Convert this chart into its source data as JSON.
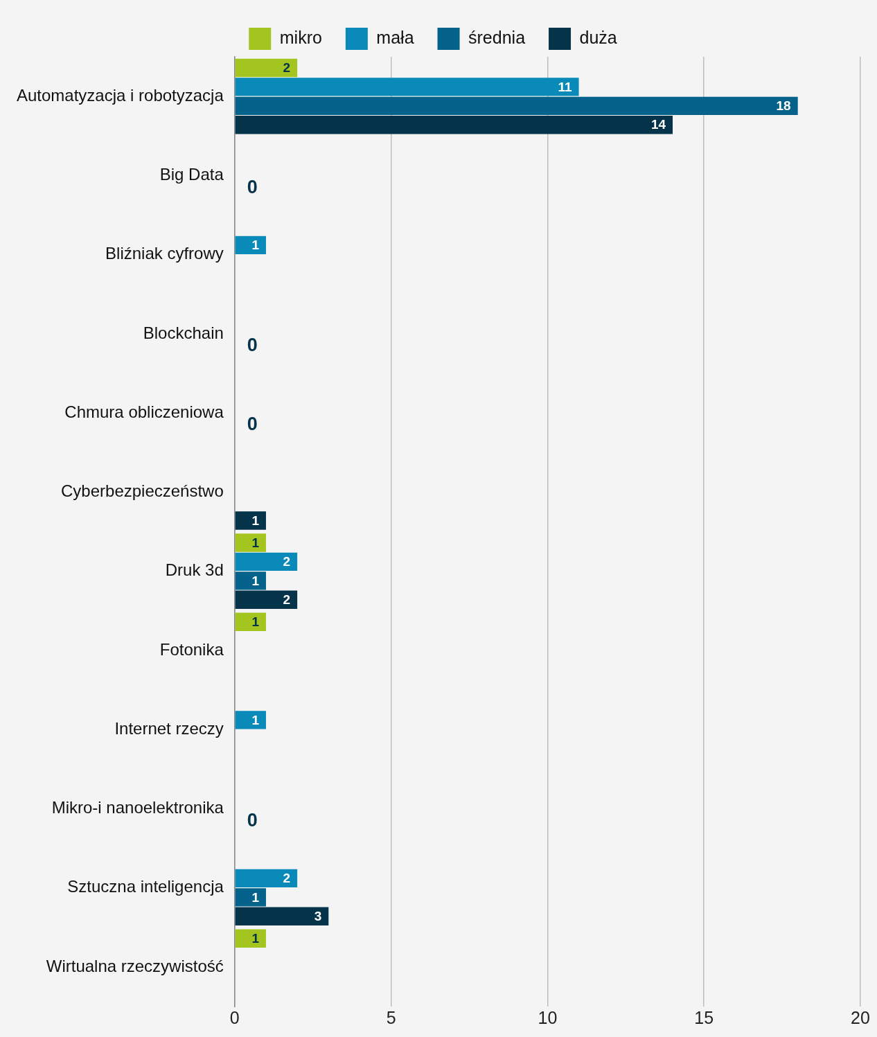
{
  "chart_data": {
    "type": "bar",
    "orientation": "horizontal",
    "categories": [
      "Automatyzacja i robotyzacja",
      "Big Data",
      "Bliźniak cyfrowy",
      "Blockchain",
      "Chmura obliczeniowa",
      "Cyberbezpieczeństwo",
      "Druk 3d",
      "Fotonika",
      "Internet rzeczy",
      "Mikro-i nanoelektronika",
      "Sztuczna inteligencja",
      "Wirtualna rzeczywistość"
    ],
    "series": [
      {
        "name": "mikro",
        "color": "#a4c520",
        "values": [
          2,
          0,
          0,
          0,
          0,
          0,
          1,
          1,
          0,
          0,
          0,
          1
        ],
        "value_labels": [
          "2",
          null,
          null,
          null,
          null,
          null,
          "1",
          "1",
          null,
          null,
          null,
          "1"
        ]
      },
      {
        "name": "mała",
        "color": "#0a8ab8",
        "values": [
          11,
          0,
          1,
          0,
          0,
          0,
          2,
          0,
          1,
          0,
          2,
          0
        ],
        "value_labels": [
          "11",
          null,
          "1",
          null,
          null,
          null,
          "2",
          null,
          "1",
          null,
          "2",
          null
        ]
      },
      {
        "name": "średnia",
        "color": "#05628a",
        "values": [
          18,
          0,
          0,
          0,
          0,
          0,
          1,
          0,
          0,
          0,
          1,
          0
        ],
        "value_labels": [
          "18",
          "0",
          null,
          "0",
          "0",
          null,
          "1",
          null,
          null,
          "0",
          "1",
          null
        ]
      },
      {
        "name": "duża",
        "color": "#04334a",
        "values": [
          14,
          0,
          0,
          0,
          0,
          1,
          2,
          0,
          0,
          0,
          3,
          0
        ],
        "value_labels": [
          "14",
          null,
          null,
          null,
          null,
          "1",
          "2",
          null,
          null,
          null,
          "3",
          null
        ]
      }
    ],
    "xlim": [
      0,
      20
    ],
    "xticks": [
      0,
      5,
      10,
      15,
      20
    ],
    "grid": "x",
    "legend": "top"
  }
}
